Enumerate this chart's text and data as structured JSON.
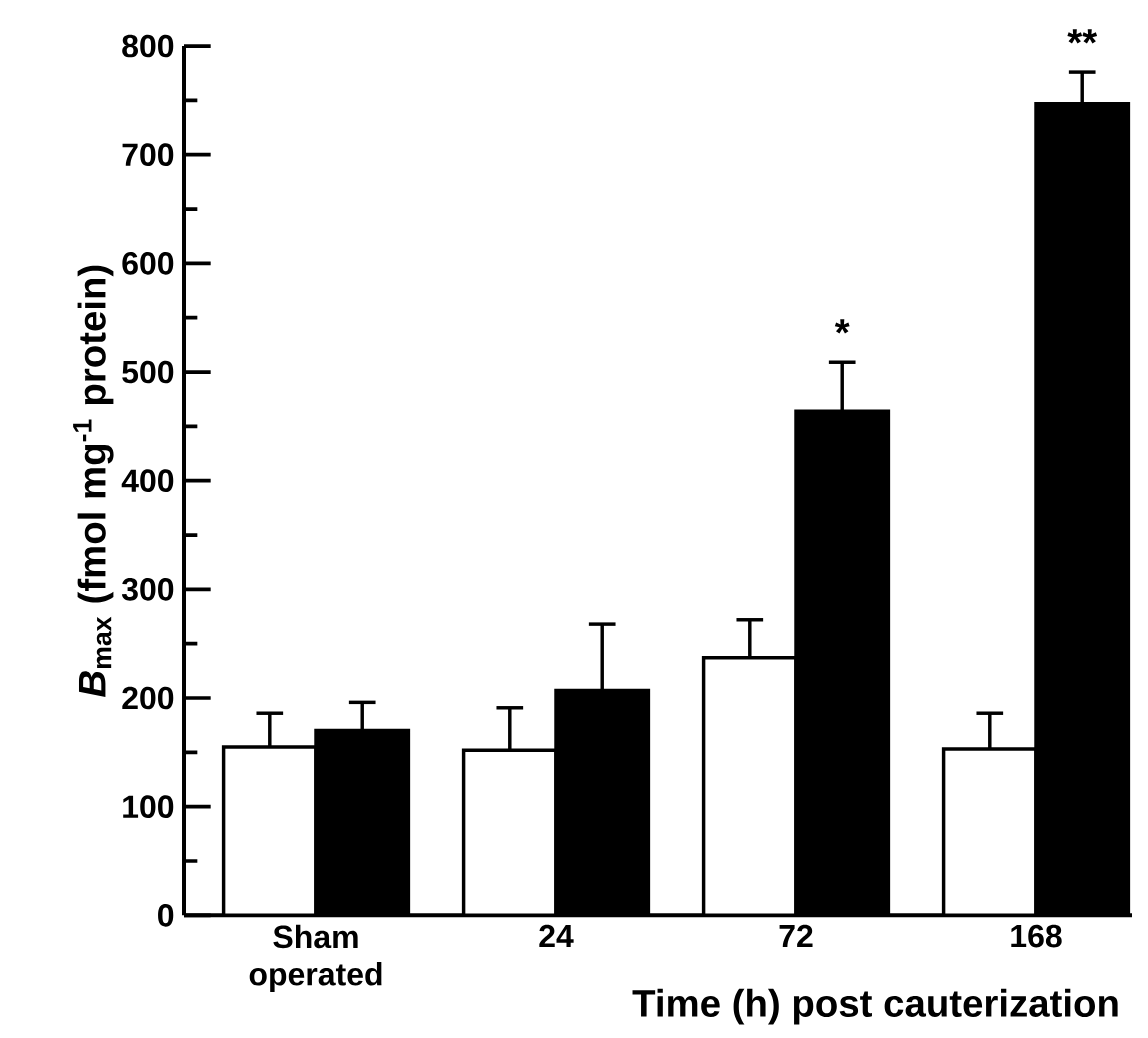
{
  "chart_data": {
    "type": "bar",
    "xlabel": "Time (h) post cauterization",
    "ylabel": "*B*$_{max}$ (fmol mg$^{-1}$ protein)",
    "categories": [
      "Sham operated",
      "24",
      "72",
      "168"
    ],
    "series": [
      {
        "color": "#ffffff",
        "values": [
          155,
          152,
          237,
          153
        ],
        "errors": [
          [
            155,
            186
          ],
          [
            152,
            191
          ],
          [
            237,
            272
          ],
          [
            153,
            186
          ]
        ]
      },
      {
        "color": "#000000",
        "values": [
          170,
          207,
          464,
          747
        ],
        "errors": [
          [
            170,
            196
          ],
          [
            207,
            268
          ],
          [
            464,
            509
          ],
          [
            747,
            776
          ]
        ]
      }
    ],
    "ylim": [
      0,
      800
    ],
    "yticks": [
      0,
      100,
      200,
      300,
      400,
      500,
      600,
      700,
      800
    ],
    "annotations": [
      {
        "text": "*",
        "x": "72",
        "y": 464
      },
      {
        "text": "**",
        "x": "168",
        "y": 747
      }
    ]
  }
}
